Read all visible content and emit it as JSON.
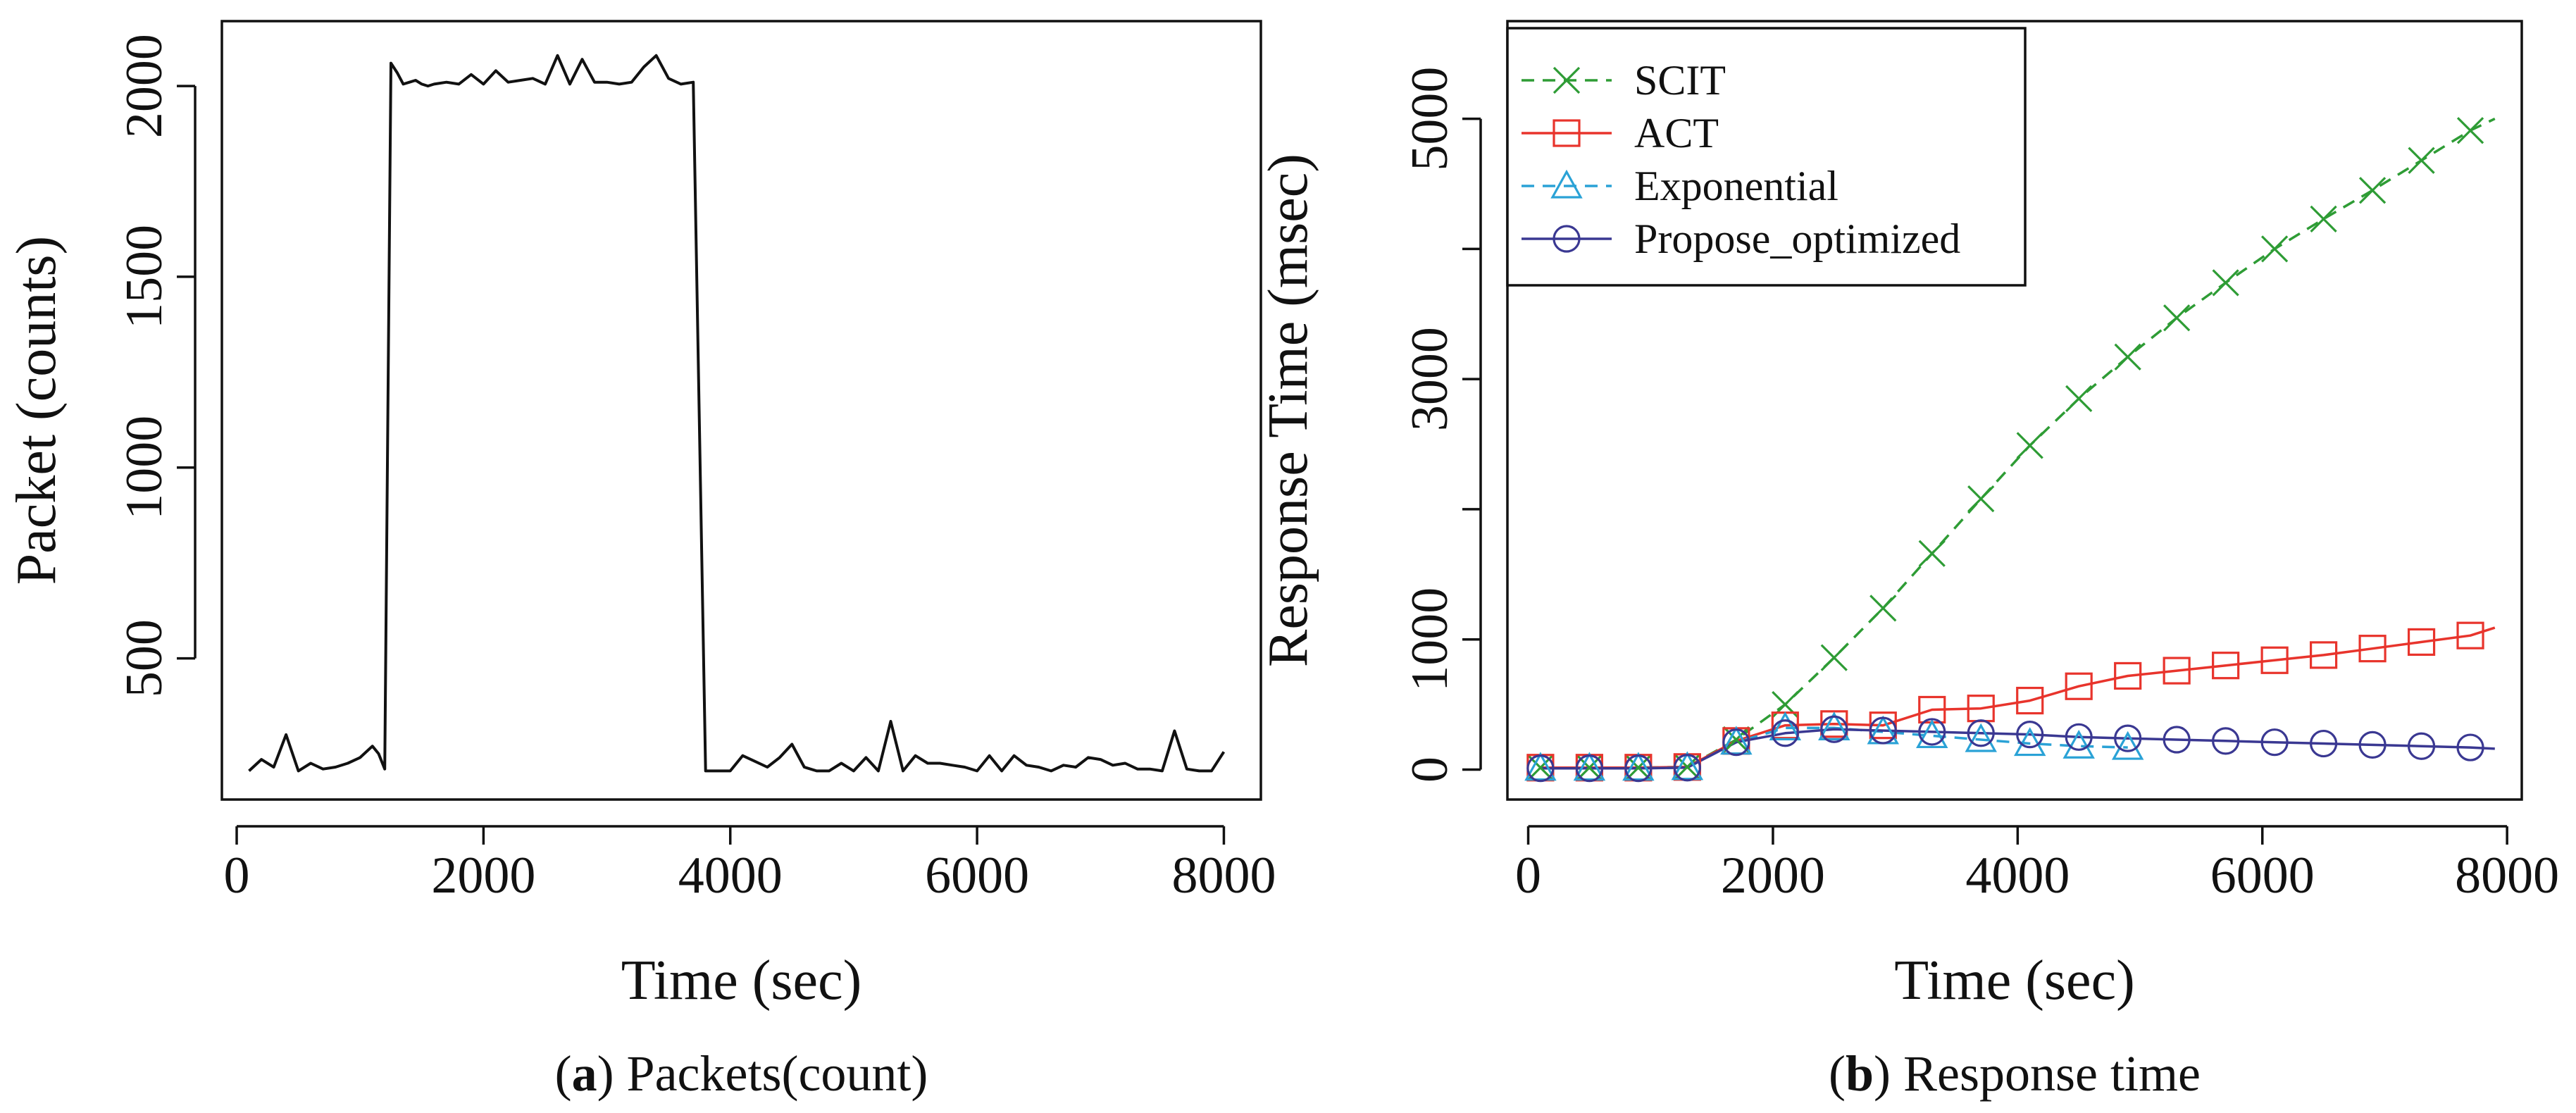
{
  "chart_data": [
    {
      "type": "line",
      "title": "",
      "xlabel": "Time (sec)",
      "ylabel": "Packet (counts)",
      "xlim": [
        -120,
        8300
      ],
      "ylim": [
        130,
        2170
      ],
      "xticks": [
        0,
        2000,
        4000,
        6000,
        8000
      ],
      "xtick_labels": [
        "0",
        "2000",
        "4000",
        "6000",
        "8000"
      ],
      "yticks": [
        500,
        1000,
        1500,
        2000
      ],
      "ytick_labels": [
        "500",
        "1000",
        "1500",
        "2000"
      ],
      "caption": {
        "prefix": "(",
        "letter": "a",
        "suffix": ") Packets(count)"
      },
      "series": [
        {
          "name": "Packets",
          "color": "#111111",
          "x": [
            100,
            200,
            300,
            400,
            500,
            600,
            700,
            800,
            900,
            1000,
            1100,
            1150,
            1200,
            1250,
            1300,
            1350,
            1400,
            1450,
            1500,
            1550,
            1600,
            1700,
            1800,
            1900,
            2000,
            2100,
            2200,
            2300,
            2400,
            2500,
            2600,
            2700,
            2800,
            2900,
            3000,
            3100,
            3200,
            3300,
            3400,
            3500,
            3600,
            3700,
            3800,
            3900,
            4000,
            4100,
            4200,
            4300,
            4400,
            4500,
            4600,
            4700,
            4800,
            4900,
            5000,
            5100,
            5200,
            5300,
            5400,
            5500,
            5600,
            5700,
            5800,
            5900,
            6000,
            6100,
            6200,
            6300,
            6400,
            6500,
            6600,
            6700,
            6800,
            6900,
            7000,
            7100,
            7200,
            7300,
            7400,
            7500,
            7600,
            7700,
            7800,
            7900,
            8000
          ],
          "y": [
            205,
            235,
            215,
            300,
            205,
            225,
            210,
            215,
            225,
            240,
            270,
            250,
            210,
            2060,
            2035,
            2005,
            2010,
            2015,
            2005,
            2000,
            2005,
            2010,
            2005,
            2030,
            2005,
            2040,
            2010,
            2015,
            2020,
            2005,
            2080,
            2005,
            2070,
            2010,
            2010,
            2005,
            2010,
            2050,
            2080,
            2020,
            2005,
            2010,
            205,
            205,
            205,
            245,
            230,
            215,
            240,
            275,
            215,
            205,
            205,
            225,
            205,
            240,
            205,
            335,
            205,
            245,
            225,
            225,
            220,
            215,
            205,
            245,
            205,
            245,
            220,
            215,
            205,
            220,
            215,
            240,
            235,
            220,
            225,
            210,
            210,
            205,
            310,
            210,
            205,
            205,
            255
          ]
        }
      ]
    },
    {
      "type": "line",
      "title": "",
      "xlabel": "Time (sec)",
      "ylabel": "Response Time (msec)",
      "xlim": [
        -170,
        8120
      ],
      "ylim": [
        -230,
        5750
      ],
      "xticks": [
        0,
        2000,
        4000,
        6000,
        8000
      ],
      "xtick_labels": [
        "0",
        "2000",
        "4000",
        "6000",
        "8000"
      ],
      "yticks": [
        0,
        1000,
        2000,
        3000,
        4000,
        5000
      ],
      "ytick_labels": [
        "0",
        "1000",
        "",
        "3000",
        "",
        "5000"
      ],
      "legend_position": "top-left",
      "caption": {
        "prefix": "(",
        "letter": "b",
        "suffix": ") Response time"
      },
      "series": [
        {
          "name": "SCIT",
          "color": "#2e9c35",
          "line_style": "dashed",
          "marker": "x",
          "x": [
            100,
            500,
            900,
            1300,
            1700,
            2100,
            2500,
            2900,
            3300,
            3700,
            4100,
            4500,
            4900,
            5300,
            5700,
            6100,
            6500,
            6900,
            7300,
            7700,
            7900
          ],
          "y": [
            15,
            15,
            15,
            20,
            230,
            500,
            860,
            1240,
            1660,
            2080,
            2490,
            2850,
            3170,
            3470,
            3740,
            4000,
            4230,
            4450,
            4680,
            4910,
            5000
          ],
          "marker_x": [
            100,
            500,
            900,
            1300,
            1700,
            2100,
            2500,
            2900,
            3300,
            3700,
            4100,
            4500,
            4900,
            5300,
            5700,
            6100,
            6500,
            6900,
            7300,
            7700
          ]
        },
        {
          "name": "ACT",
          "color": "#e8342c",
          "line_style": "solid",
          "marker": "square",
          "x": [
            100,
            500,
            900,
            1300,
            1700,
            2100,
            2500,
            2900,
            3300,
            3700,
            4100,
            4500,
            4900,
            5300,
            5700,
            6100,
            6500,
            6900,
            7300,
            7700,
            7900
          ],
          "y": [
            15,
            15,
            15,
            20,
            220,
            340,
            350,
            340,
            460,
            470,
            530,
            640,
            720,
            760,
            800,
            840,
            880,
            930,
            980,
            1030,
            1090
          ],
          "marker_x": [
            100,
            500,
            900,
            1300,
            1700,
            2100,
            2500,
            2900,
            3300,
            3700,
            4100,
            4500,
            4900,
            5300,
            5700,
            6100,
            6500,
            6900,
            7300,
            7700
          ]
        },
        {
          "name": "Exponential",
          "color": "#2aa2d6",
          "line_style": "dashed",
          "marker": "triangle",
          "x": [
            100,
            500,
            900,
            1300,
            1700,
            2100,
            2500,
            2900,
            3300,
            3700,
            4100,
            4500,
            4900
          ],
          "y": [
            10,
            10,
            10,
            15,
            210,
            320,
            320,
            290,
            260,
            230,
            200,
            180,
            170
          ],
          "marker_x": [
            100,
            500,
            900,
            1300,
            1700,
            2100,
            2500,
            2900,
            3300,
            3700,
            4100,
            4500,
            4900
          ]
        },
        {
          "name": "Propose_optimized",
          "color": "#3a3892",
          "line_style": "solid",
          "marker": "circle",
          "x": [
            100,
            500,
            900,
            1300,
            1700,
            2100,
            2500,
            2900,
            3300,
            3700,
            4100,
            4500,
            4900,
            5300,
            5700,
            6100,
            6500,
            6900,
            7300,
            7700,
            7900
          ],
          "y": [
            10,
            10,
            10,
            15,
            210,
            280,
            310,
            300,
            290,
            280,
            270,
            250,
            240,
            230,
            220,
            210,
            200,
            190,
            180,
            170,
            160
          ],
          "marker_x": [
            100,
            500,
            900,
            1300,
            1700,
            2100,
            2500,
            2900,
            3300,
            3700,
            4100,
            4500,
            4900,
            5300,
            5700,
            6100,
            6500,
            6900,
            7300,
            7700
          ]
        }
      ]
    }
  ]
}
